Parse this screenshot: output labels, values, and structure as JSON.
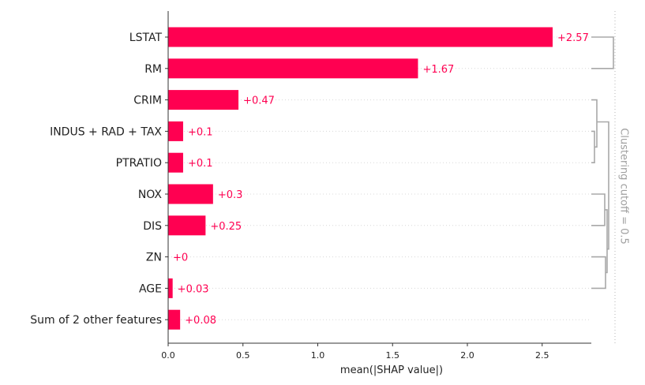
{
  "chart_data": {
    "type": "bar",
    "orientation": "horizontal",
    "categories": [
      "LSTAT",
      "RM",
      "CRIM",
      "INDUS + RAD + TAX",
      "PTRATIO",
      "NOX",
      "DIS",
      "ZN",
      "AGE",
      "Sum of 2 other features"
    ],
    "values": [
      2.57,
      1.67,
      0.47,
      0.1,
      0.1,
      0.3,
      0.25,
      0,
      0.03,
      0.08
    ],
    "value_labels": [
      "+2.57",
      "+1.67",
      "+0.47",
      "+0.1",
      "+0.1",
      "+0.3",
      "+0.25",
      "+0",
      "+0.03",
      "+0.08"
    ],
    "xlabel": "mean(|SHAP value|)",
    "xlim": [
      0,
      2.82
    ],
    "xticks": [
      0.0,
      0.5,
      1.0,
      1.5,
      2.0,
      2.5
    ],
    "xtick_labels": [
      "0.0",
      "0.5",
      "1.0",
      "1.5",
      "2.0",
      "2.5"
    ],
    "grid": "horizontal dotted",
    "clustering_cutoff_label": "Clustering cutoff = 0.5",
    "bar_color": "#ff0051",
    "label_color": "#ff0051",
    "dendrogram_color": "#a8a8a8"
  }
}
